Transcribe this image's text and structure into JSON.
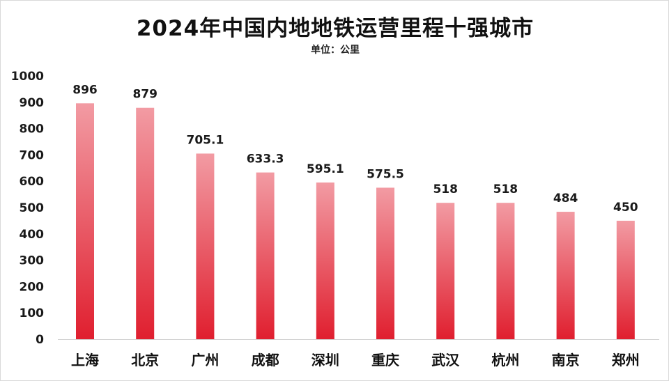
{
  "chart_data": {
    "type": "bar",
    "title": "2024年中国内地地铁运营里程十强城市",
    "subtitle": "单位：公里",
    "xlabel": "",
    "ylabel": "",
    "ylim": [
      0,
      1000
    ],
    "yticks": [
      0,
      100,
      200,
      300,
      400,
      500,
      600,
      700,
      800,
      900,
      1000
    ],
    "categories": [
      "上海",
      "北京",
      "广州",
      "成都",
      "深圳",
      "重庆",
      "武汉",
      "杭州",
      "南京",
      "郑州"
    ],
    "values": [
      896,
      879,
      705.1,
      633.3,
      595.1,
      575.5,
      518,
      518,
      484,
      450
    ],
    "value_labels": [
      "896",
      "879",
      "705.1",
      "633.3",
      "595.1",
      "575.5",
      "518",
      "518",
      "484",
      "450"
    ],
    "grid": false,
    "legend": "none",
    "colors": {
      "bar_top": "#f29ba3",
      "bar_bottom": "#e01f2f",
      "axis": "#d0d0d0"
    }
  }
}
